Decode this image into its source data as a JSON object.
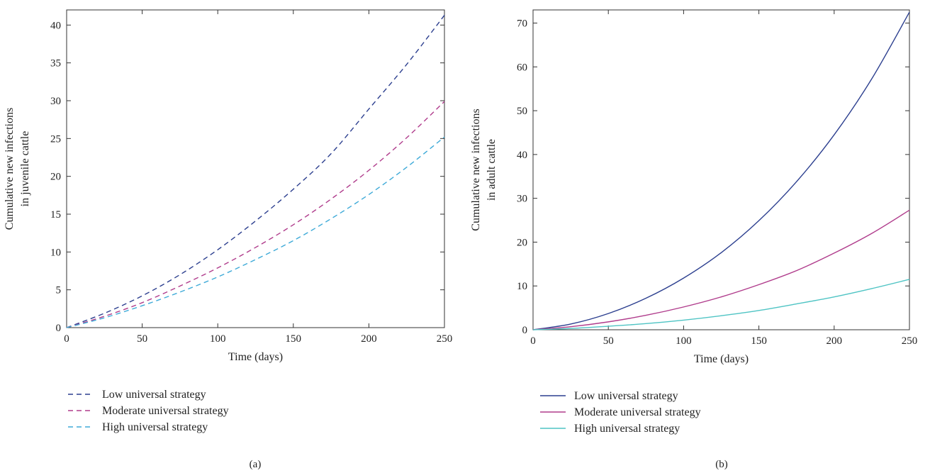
{
  "chart_data": [
    {
      "panel": "(a)",
      "type": "line",
      "line_style": "dashed",
      "xlabel": "Time (days)",
      "ylabel": [
        "Cumulative new infections",
        "in juvenile cattle"
      ],
      "xlim": [
        0,
        250
      ],
      "ylim": [
        0,
        42
      ],
      "xticks": [
        0,
        50,
        100,
        150,
        200,
        250
      ],
      "yticks": [
        0,
        5,
        10,
        15,
        20,
        25,
        30,
        35,
        40
      ],
      "grid": false,
      "legend_position": "below",
      "x": [
        0,
        25,
        50,
        75,
        100,
        125,
        150,
        175,
        200,
        225,
        250
      ],
      "series": [
        {
          "name": "Low universal strategy",
          "color": "#2c3f8f",
          "values": [
            0,
            1.9,
            4.2,
            7.0,
            10.3,
            14.1,
            18.3,
            23.0,
            28.9,
            34.8,
            41.3
          ]
        },
        {
          "name": "Moderate universal strategy",
          "color": "#b03c8c",
          "values": [
            0,
            1.5,
            3.3,
            5.5,
            7.9,
            10.6,
            13.6,
            17.0,
            20.8,
            25.1,
            29.9
          ]
        },
        {
          "name": "High universal strategy",
          "color": "#3eaad8",
          "values": [
            0,
            1.3,
            2.9,
            4.7,
            6.7,
            9.0,
            11.5,
            14.4,
            17.6,
            21.2,
            25.2
          ]
        }
      ]
    },
    {
      "panel": "(b)",
      "type": "line",
      "line_style": "solid",
      "xlabel": "Time (days)",
      "ylabel": [
        "Cumulative new infections",
        "in adult cattle"
      ],
      "xlim": [
        0,
        250
      ],
      "ylim": [
        0,
        73
      ],
      "xticks": [
        0,
        50,
        100,
        150,
        200,
        250
      ],
      "yticks": [
        0,
        10,
        20,
        30,
        40,
        50,
        60,
        70
      ],
      "grid": false,
      "legend_position": "below",
      "x": [
        0,
        25,
        50,
        75,
        100,
        125,
        150,
        175,
        200,
        225,
        250
      ],
      "series": [
        {
          "name": "Low universal strategy",
          "color": "#2c3f8f",
          "values": [
            0,
            1.3,
            3.7,
            7.2,
            11.8,
            17.6,
            24.9,
            33.8,
            44.5,
            57.3,
            72.5
          ]
        },
        {
          "name": "Moderate universal strategy",
          "color": "#b03c8c",
          "values": [
            0,
            0.7,
            1.8,
            3.3,
            5.2,
            7.5,
            10.3,
            13.5,
            17.5,
            22.0,
            27.3
          ]
        },
        {
          "name": "High universal strategy",
          "color": "#4fc4c4",
          "values": [
            0,
            0.3,
            0.8,
            1.4,
            2.2,
            3.2,
            4.4,
            5.9,
            7.5,
            9.4,
            11.5
          ]
        }
      ]
    }
  ]
}
